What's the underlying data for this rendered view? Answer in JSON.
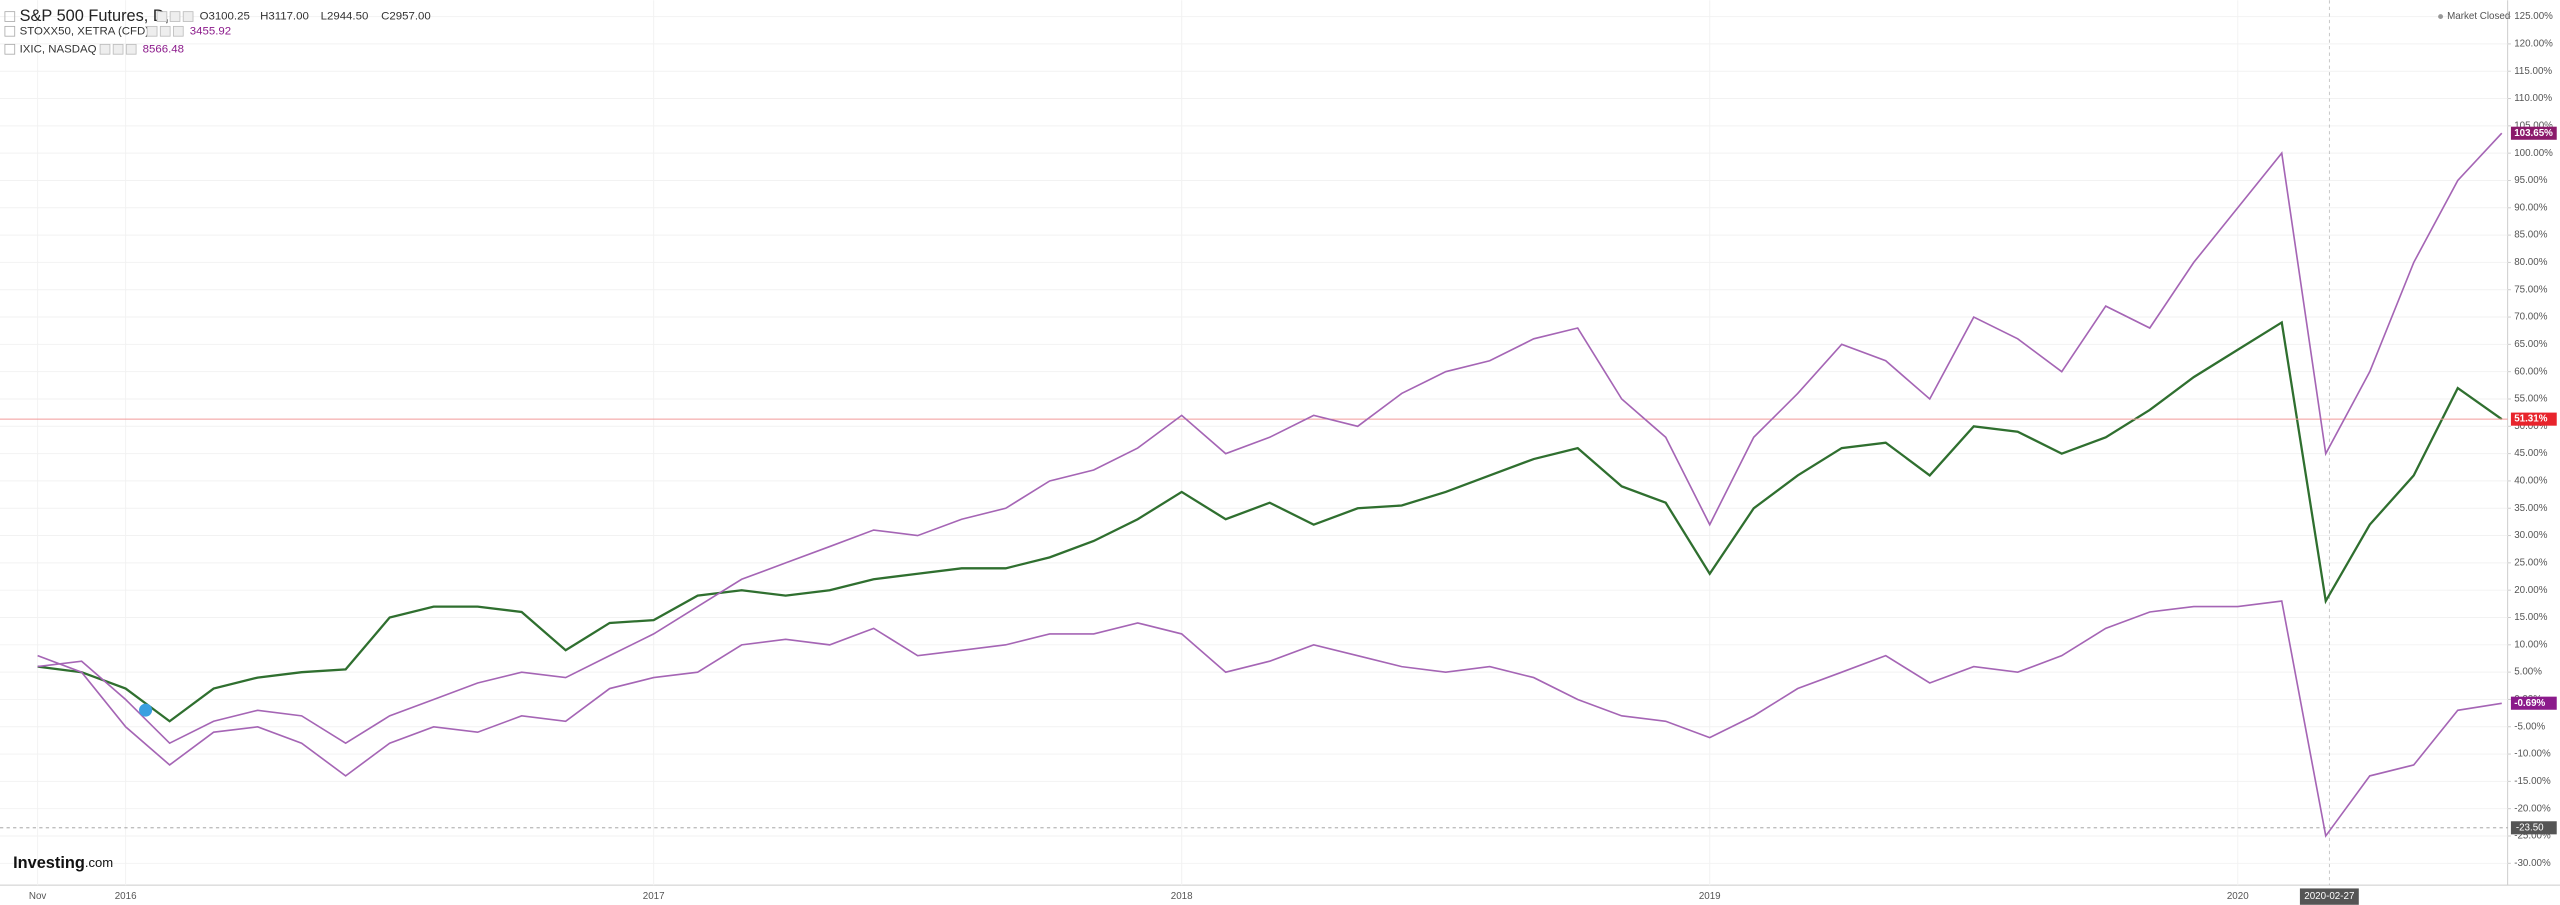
{
  "chart_data": {
    "type": "line",
    "market_status": "Market Closed",
    "brand": "Investing",
    "brand_suffix": ".com",
    "crosshair_date": "2020-02-27",
    "crosshair_value": {
      "value": -23.5,
      "label": "-23.50"
    },
    "categories": [
      "Nov",
      null,
      "2016",
      null,
      null,
      null,
      null,
      null,
      null,
      null,
      null,
      null,
      null,
      null,
      "2017",
      null,
      null,
      null,
      null,
      null,
      null,
      null,
      null,
      null,
      null,
      null,
      "2018",
      null,
      null,
      null,
      null,
      null,
      null,
      null,
      null,
      null,
      null,
      null,
      "2019",
      null,
      null,
      null,
      null,
      null,
      null,
      null,
      null,
      null,
      null,
      null,
      "2020",
      null,
      null,
      null,
      null,
      null,
      null
    ],
    "series": [
      {
        "name": "S&P 500 Futures, D,",
        "color": "#2f6f2f",
        "down_color": "#8b1a1a",
        "quote": [
          "O3100.25",
          "H3117.00",
          "L2944.50",
          "C2957.00"
        ],
        "last_value": {
          "value": 51.31,
          "label": "51.31%"
        },
        "label_color": "#e8242c",
        "values": [
          6,
          5,
          2,
          -4,
          2,
          4,
          5,
          5.5,
          15,
          17,
          17,
          16,
          9,
          14,
          14.5,
          19,
          20,
          19,
          20,
          22,
          23,
          24,
          24,
          26,
          29,
          33,
          38,
          33,
          36,
          32,
          35,
          35.5,
          38,
          41,
          44,
          46,
          39,
          36,
          23,
          35,
          41,
          46,
          47,
          41,
          50,
          49,
          45,
          48,
          53,
          59,
          64,
          69,
          18,
          32,
          41,
          57,
          51.31
        ]
      },
      {
        "name": "STOXX50, XETRA (CFD)",
        "color": "#a565b5",
        "quote": [
          "3455.92"
        ],
        "last_value": {
          "value": -0.69,
          "label": "-0.69%"
        },
        "label_color": "#8b1a8b",
        "values": [
          8,
          5,
          -5,
          -12,
          -6,
          -5,
          -8,
          -14,
          -8,
          -5,
          -6,
          -3,
          -4,
          2,
          4,
          5,
          10,
          11,
          10,
          13,
          8,
          9,
          10,
          12,
          12,
          14,
          12,
          5,
          7,
          10,
          8,
          6,
          5,
          6,
          4,
          0,
          -3,
          -4,
          -7,
          -3,
          2,
          5,
          8,
          3,
          6,
          5,
          8,
          13,
          16,
          17,
          17,
          18,
          -25,
          -14,
          -12,
          -2,
          -0.69
        ]
      },
      {
        "name": "IXIC, NASDAQ",
        "color": "#a565b5",
        "quote": [
          "8566.48"
        ],
        "last_value": {
          "value": 103.65,
          "label": "103.65%"
        },
        "label_color": "#8b1a6b",
        "values": [
          6,
          7,
          0,
          -8,
          -4,
          -2,
          -3,
          -8,
          -3,
          0,
          3,
          5,
          4,
          8,
          12,
          17,
          22,
          25,
          28,
          31,
          30,
          33,
          35,
          40,
          42,
          46,
          52,
          45,
          48,
          52,
          50,
          56,
          60,
          62,
          66,
          68,
          55,
          48,
          32,
          48,
          56,
          65,
          62,
          55,
          70,
          66,
          60,
          72,
          68,
          80,
          90,
          100,
          45,
          60,
          80,
          95,
          103.65
        ]
      }
    ],
    "ylim": [
      -34,
      128
    ],
    "yticks": [
      {
        "value": 125,
        "label": "125.00%"
      },
      {
        "value": 120,
        "label": "120.00%"
      },
      {
        "value": 115,
        "label": "115.00%"
      },
      {
        "value": 110,
        "label": "110.00%"
      },
      {
        "value": 105,
        "label": "105.00%"
      },
      {
        "value": 100,
        "label": "100.00%"
      },
      {
        "value": 95,
        "label": "95.00%"
      },
      {
        "value": 90,
        "label": "90.00%"
      },
      {
        "value": 85,
        "label": "85.00%"
      },
      {
        "value": 80,
        "label": "80.00%"
      },
      {
        "value": 75,
        "label": "75.00%"
      },
      {
        "value": 70,
        "label": "70.00%"
      },
      {
        "value": 65,
        "label": "65.00%"
      },
      {
        "value": 60,
        "label": "60.00%"
      },
      {
        "value": 55,
        "label": "55.00%"
      },
      {
        "value": 50,
        "label": "50.00%"
      },
      {
        "value": 45,
        "label": "45.00%"
      },
      {
        "value": 40,
        "label": "40.00%"
      },
      {
        "value": 35,
        "label": "35.00%"
      },
      {
        "value": 30,
        "label": "30.00%"
      },
      {
        "value": 25,
        "label": "25.00%"
      },
      {
        "value": 20,
        "label": "20.00%"
      },
      {
        "value": 15,
        "label": "15.00%"
      },
      {
        "value": 10,
        "label": "10.00%"
      },
      {
        "value": 5,
        "label": "5.00%"
      },
      {
        "value": 0,
        "label": "0.00%"
      },
      {
        "value": -5,
        "label": "-5.00%"
      },
      {
        "value": -10,
        "label": "-10.00%"
      },
      {
        "value": -15,
        "label": "-15.00%"
      },
      {
        "value": -20,
        "label": "-20.00%"
      },
      {
        "value": -25,
        "label": "-25.00%"
      },
      {
        "value": -30,
        "label": "-30.00%"
      }
    ],
    "grid": true
  }
}
